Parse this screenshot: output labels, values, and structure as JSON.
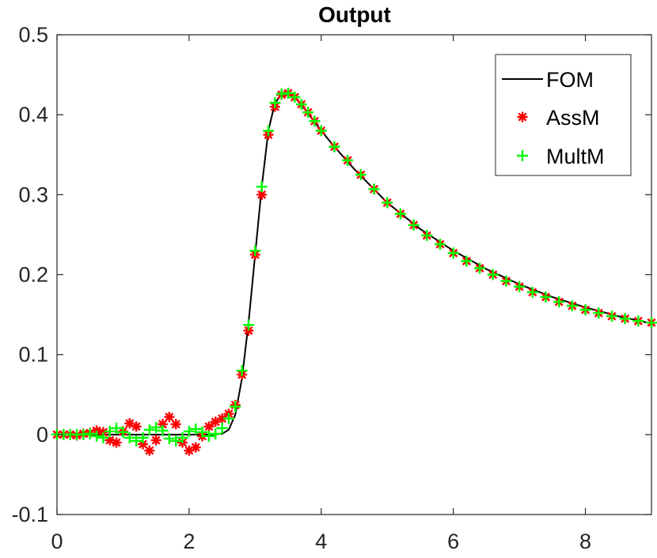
{
  "chart_data": {
    "type": "line",
    "title": "Output",
    "xlabel": "",
    "ylabel": "",
    "xlim": [
      0,
      9
    ],
    "ylim": [
      -0.1,
      0.5
    ],
    "xticks": [
      0,
      2,
      4,
      6,
      8
    ],
    "xtick_labels": [
      "0",
      "2",
      "4",
      "6",
      "8"
    ],
    "yticks": [
      -0.1,
      0,
      0.1,
      0.2,
      0.3,
      0.4,
      0.5
    ],
    "ytick_labels": [
      "-0.1",
      "0",
      "0.1",
      "0.2",
      "0.3",
      "0.4",
      "0.5"
    ],
    "grid": false,
    "legend_position": "top-right",
    "series": [
      {
        "name": "FOM",
        "style": "line",
        "color": "#000000",
        "x": [
          0,
          0.5,
          1.0,
          1.5,
          2.0,
          2.3,
          2.5,
          2.6,
          2.7,
          2.8,
          2.9,
          3.0,
          3.1,
          3.2,
          3.3,
          3.4,
          3.5,
          3.6,
          3.7,
          3.8,
          4.0,
          4.2,
          4.5,
          5.0,
          5.5,
          6.0,
          6.5,
          7.0,
          7.5,
          8.0,
          8.5,
          9.0
        ],
        "y": [
          0,
          0,
          0,
          0,
          0,
          0,
          0.001,
          0.006,
          0.025,
          0.07,
          0.14,
          0.225,
          0.31,
          0.38,
          0.415,
          0.425,
          0.427,
          0.422,
          0.412,
          0.402,
          0.38,
          0.36,
          0.332,
          0.29,
          0.257,
          0.23,
          0.207,
          0.188,
          0.172,
          0.159,
          0.148,
          0.139
        ]
      },
      {
        "name": "AssM",
        "style": "star",
        "color": "#ff0000",
        "x": [
          0,
          0.1,
          0.2,
          0.3,
          0.4,
          0.5,
          0.6,
          0.7,
          0.8,
          0.9,
          1.0,
          1.1,
          1.2,
          1.3,
          1.4,
          1.5,
          1.6,
          1.7,
          1.8,
          1.9,
          2.0,
          2.1,
          2.2,
          2.3,
          2.4,
          2.5,
          2.6,
          2.7,
          2.8,
          2.9,
          3.0,
          3.1,
          3.2,
          3.3,
          3.4,
          3.5,
          3.6,
          3.7,
          3.8,
          3.9,
          4.0,
          4.2,
          4.4,
          4.6,
          4.8,
          5.0,
          5.2,
          5.4,
          5.6,
          5.8,
          6.0,
          6.2,
          6.4,
          6.6,
          6.8,
          7.0,
          7.2,
          7.4,
          7.6,
          7.8,
          8.0,
          8.2,
          8.4,
          8.6,
          8.8,
          9.0
        ],
        "y": [
          0,
          0,
          0,
          -0.001,
          0.001,
          0.002,
          0.005,
          0.003,
          -0.007,
          -0.01,
          0.004,
          0.014,
          0.01,
          -0.012,
          -0.02,
          -0.007,
          0.013,
          0.022,
          0.013,
          -0.01,
          -0.02,
          -0.016,
          -0.002,
          0.01,
          0.016,
          0.02,
          0.026,
          0.037,
          0.075,
          0.13,
          0.225,
          0.3,
          0.375,
          0.41,
          0.425,
          0.427,
          0.422,
          0.413,
          0.403,
          0.392,
          0.38,
          0.36,
          0.343,
          0.325,
          0.307,
          0.29,
          0.276,
          0.262,
          0.249,
          0.238,
          0.227,
          0.217,
          0.208,
          0.2,
          0.192,
          0.185,
          0.178,
          0.172,
          0.166,
          0.161,
          0.156,
          0.152,
          0.148,
          0.145,
          0.142,
          0.14
        ]
      },
      {
        "name": "MultM",
        "style": "plus",
        "color": "#00ff00",
        "x": [
          0,
          0.1,
          0.2,
          0.3,
          0.4,
          0.5,
          0.6,
          0.7,
          0.8,
          0.9,
          1.0,
          1.1,
          1.2,
          1.3,
          1.4,
          1.5,
          1.6,
          1.7,
          1.8,
          1.9,
          2.0,
          2.1,
          2.2,
          2.3,
          2.4,
          2.5,
          2.6,
          2.7,
          2.8,
          2.9,
          3.0,
          3.1,
          3.2,
          3.3,
          3.4,
          3.5,
          3.6,
          3.7,
          3.8,
          3.9,
          4.0,
          4.2,
          4.4,
          4.6,
          4.8,
          5.0,
          5.2,
          5.4,
          5.6,
          5.8,
          6.0,
          6.2,
          6.4,
          6.6,
          6.8,
          7.0,
          7.2,
          7.4,
          7.6,
          7.8,
          8.0,
          8.2,
          8.4,
          8.6,
          8.8,
          9.0
        ],
        "y": [
          0,
          0,
          0,
          0,
          0,
          0.001,
          -0.002,
          -0.004,
          0.004,
          0.008,
          0.003,
          -0.004,
          -0.008,
          -0.004,
          0.006,
          0.009,
          0.005,
          -0.005,
          -0.008,
          -0.004,
          0.004,
          0.007,
          0.003,
          -0.002,
          0.001,
          0.008,
          0.02,
          0.035,
          0.08,
          0.137,
          0.23,
          0.31,
          0.38,
          0.415,
          0.426,
          0.427,
          0.422,
          0.413,
          0.403,
          0.392,
          0.38,
          0.36,
          0.343,
          0.325,
          0.307,
          0.29,
          0.276,
          0.262,
          0.249,
          0.238,
          0.227,
          0.217,
          0.208,
          0.2,
          0.192,
          0.185,
          0.178,
          0.172,
          0.166,
          0.161,
          0.156,
          0.152,
          0.148,
          0.145,
          0.142,
          0.14
        ]
      }
    ]
  }
}
